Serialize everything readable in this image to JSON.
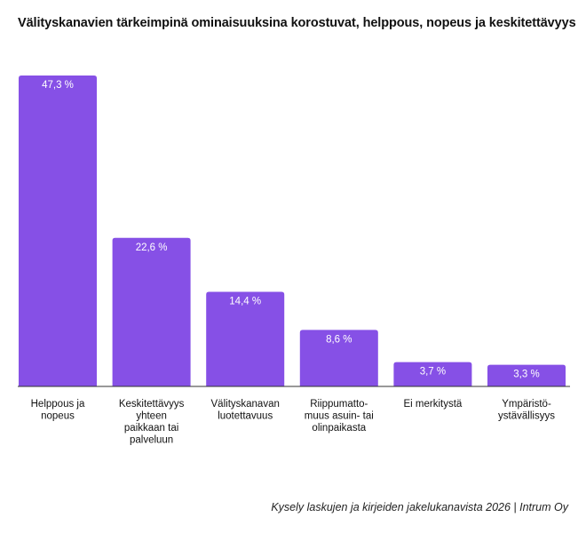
{
  "title": "Välityskanavien tärkeimpinä ominaisuuksina korostuvat, helppous, nopeus ja keskitettävyys",
  "source": "Kysely laskujen ja kirjeiden jakelukanavista 2026 | Intrum Oy",
  "colors": {
    "bar": "#8650E6",
    "text": "#111111",
    "axis": "#333333"
  },
  "chart_data": {
    "type": "bar",
    "categories": [
      [
        "Helppous ja",
        "nopeus"
      ],
      [
        "Keskitettävyys",
        "yhteen",
        "paikkaan tai",
        "palveluun"
      ],
      [
        "Välityskanavan",
        "luotettavuus"
      ],
      [
        "Riippumatto-",
        "muus asuin-  tai",
        "olinpaikasta"
      ],
      [
        "Ei merkitystä"
      ],
      [
        "Ympäristö-",
        "ystävällisyys"
      ]
    ],
    "values": [
      47.3,
      22.6,
      14.4,
      8.6,
      3.7,
      3.3
    ],
    "value_labels": [
      "47,3 %",
      "22,6 %",
      "14,4 %",
      "8,6 %",
      "3,7 %",
      "3,3 %"
    ],
    "ylim": [
      0,
      47.3
    ],
    "grid": false,
    "legend": "none"
  }
}
